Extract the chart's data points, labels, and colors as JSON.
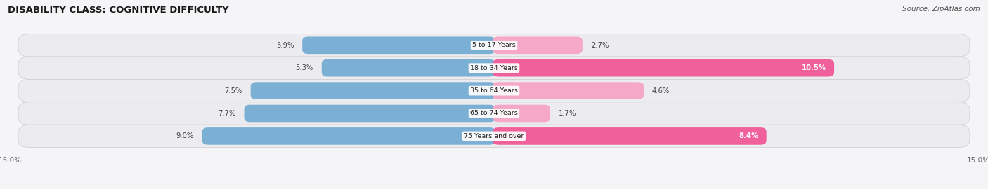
{
  "title": "DISABILITY CLASS: COGNITIVE DIFFICULTY",
  "source": "Source: ZipAtlas.com",
  "categories": [
    "5 to 17 Years",
    "18 to 34 Years",
    "35 to 64 Years",
    "65 to 74 Years",
    "75 Years and over"
  ],
  "male_values": [
    5.9,
    5.3,
    7.5,
    7.7,
    9.0
  ],
  "female_values": [
    2.7,
    10.5,
    4.6,
    1.7,
    8.4
  ],
  "max_val": 15.0,
  "male_color": "#7bafd4",
  "female_color_bright": "#f0609a",
  "female_color_light": "#f5a8c8",
  "row_bg_color": "#ececf0",
  "fig_bg_color": "#f5f5f8",
  "title_color": "#1a1a1a",
  "label_color": "#333333",
  "value_color": "#444444",
  "axis_tick_color": "#666666",
  "legend_male_color": "#7bafd4",
  "legend_female_color": "#f0609a"
}
